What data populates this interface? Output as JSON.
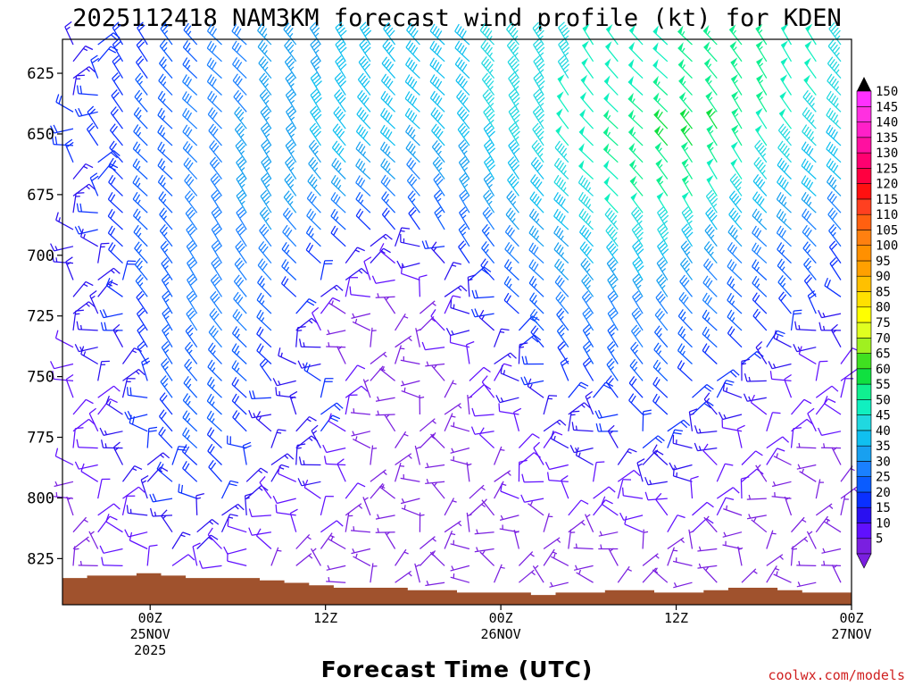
{
  "chart_data": {
    "type": "wind-barb time-height profile",
    "title": "2025112418 NAM3KM forecast wind profile (kt) for KDEN",
    "xlabel": "Forecast Time (UTC)",
    "ylabel": "",
    "credit": "coolwx.com/models",
    "y_axis": {
      "unit": "hPa",
      "inverted": true,
      "ylim": [
        611,
        844
      ],
      "ticks": [
        "625",
        "650",
        "675",
        "700",
        "725",
        "750",
        "775",
        "800",
        "825"
      ]
    },
    "x_axis": {
      "xlim_hours": [
        18,
        72
      ],
      "ticks": [
        {
          "hour": 24,
          "label": "00Z",
          "date": "25NOV",
          "year": "2025"
        },
        {
          "hour": 36,
          "label": "12Z",
          "date": "",
          "year": ""
        },
        {
          "hour": 48,
          "label": "00Z",
          "date": "26NOV",
          "year": ""
        },
        {
          "hour": 60,
          "label": "12Z",
          "date": "",
          "year": ""
        },
        {
          "hour": 72,
          "label": "00Z",
          "date": "27NOV",
          "year": ""
        }
      ]
    },
    "colorbar": {
      "levels_kt": [
        5,
        10,
        15,
        20,
        25,
        30,
        35,
        40,
        45,
        50,
        55,
        60,
        65,
        70,
        75,
        80,
        85,
        90,
        95,
        100,
        105,
        110,
        115,
        120,
        125,
        130,
        135,
        140,
        145,
        150
      ],
      "colors": [
        "#7a1fe0",
        "#6010ff",
        "#2a10f0",
        "#0a30ff",
        "#0a5cff",
        "#1a80ff",
        "#18a0f0",
        "#10c0f0",
        "#20d8e0",
        "#10f0c0",
        "#10f090",
        "#10e040",
        "#40e020",
        "#a0f020",
        "#e0ff20",
        "#ffff00",
        "#ffe000",
        "#ffc000",
        "#ffa000",
        "#ff9000",
        "#ff8010",
        "#ff6010",
        "#ff4020",
        "#ff1010",
        "#ff0040",
        "#ff0070",
        "#ff10a0",
        "#ff20c8",
        "#ff30e0",
        "#ff30ff"
      ]
    },
    "terrain_color": "#a0522d",
    "surface_pressure_hpa": [
      833,
      832,
      832,
      831,
      832,
      833,
      833,
      833,
      834,
      835,
      836,
      837,
      837,
      837,
      838,
      838,
      839,
      839,
      839,
      840,
      839,
      839,
      838,
      838,
      839,
      839,
      838,
      837,
      837,
      838,
      839,
      839
    ],
    "wind_speed_kt": {
      "description": "sampled wind speed field (kt); columns every ~2 hours from 18Z 24NOV, rows by pressure level",
      "levels_hpa": [
        625,
        650,
        675,
        700,
        725,
        750,
        775,
        800,
        825
      ],
      "rows": [
        [
          15,
          17,
          20,
          22,
          25,
          27,
          30,
          32,
          35,
          37,
          38,
          38,
          40,
          40,
          42,
          42,
          45,
          45,
          47,
          48,
          48,
          50,
          52,
          55,
          55,
          55,
          50,
          48,
          45
        ],
        [
          18,
          20,
          22,
          25,
          27,
          30,
          32,
          34,
          36,
          38,
          40,
          40,
          40,
          38,
          40,
          42,
          45,
          47,
          50,
          52,
          55,
          57,
          60,
          60,
          55,
          52,
          48,
          45,
          42
        ],
        [
          16,
          18,
          21,
          24,
          27,
          30,
          32,
          34,
          36,
          36,
          35,
          32,
          30,
          30,
          32,
          35,
          38,
          40,
          44,
          48,
          52,
          55,
          55,
          50,
          46,
          42,
          40,
          38,
          35
        ],
        [
          14,
          16,
          20,
          24,
          28,
          30,
          32,
          32,
          30,
          25,
          18,
          14,
          12,
          15,
          20,
          24,
          28,
          32,
          36,
          40,
          42,
          42,
          40,
          36,
          32,
          30,
          28,
          25,
          22
        ],
        [
          12,
          15,
          18,
          22,
          26,
          30,
          30,
          28,
          20,
          10,
          6,
          6,
          5,
          8,
          12,
          16,
          20,
          24,
          28,
          30,
          32,
          32,
          30,
          28,
          25,
          22,
          20,
          18,
          15
        ],
        [
          10,
          12,
          15,
          20,
          24,
          26,
          26,
          22,
          15,
          20,
          8,
          5,
          5,
          5,
          8,
          10,
          14,
          18,
          20,
          22,
          24,
          24,
          22,
          20,
          18,
          15,
          12,
          10,
          10
        ],
        [
          8,
          10,
          14,
          18,
          22,
          24,
          22,
          18,
          12,
          20,
          10,
          5,
          5,
          5,
          5,
          8,
          10,
          12,
          14,
          15,
          18,
          20,
          18,
          15,
          12,
          10,
          8,
          8,
          8
        ],
        [
          6,
          8,
          12,
          15,
          18,
          20,
          18,
          14,
          10,
          12,
          8,
          5,
          5,
          5,
          5,
          5,
          8,
          8,
          10,
          10,
          10,
          12,
          12,
          10,
          8,
          6,
          5,
          5,
          5
        ],
        [
          5,
          6,
          8,
          10,
          12,
          12,
          10,
          8,
          6,
          6,
          5,
          5,
          5,
          5,
          5,
          5,
          5,
          5,
          5,
          5,
          5,
          5,
          5,
          5,
          5,
          5,
          5,
          5,
          5
        ]
      ]
    }
  }
}
